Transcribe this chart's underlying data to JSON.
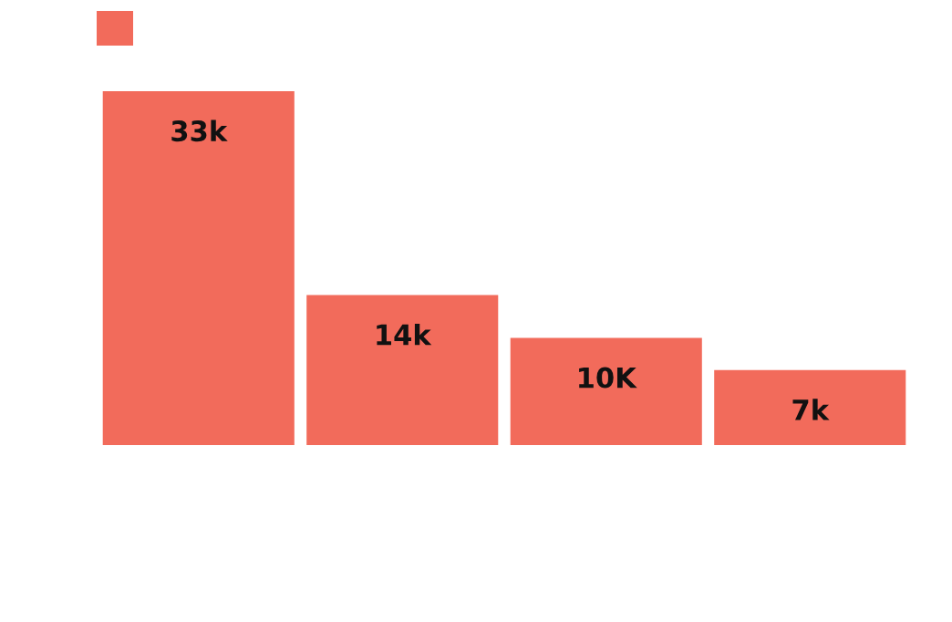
{
  "chart_data": {
    "type": "bar",
    "categories": [
      null,
      null,
      null,
      null
    ],
    "series": [
      {
        "color": "#f26b5b",
        "values": [
          33,
          14,
          10,
          7
        ],
        "value_labels": [
          "33k",
          "14k",
          "10K",
          "7k"
        ]
      }
    ]
  }
}
